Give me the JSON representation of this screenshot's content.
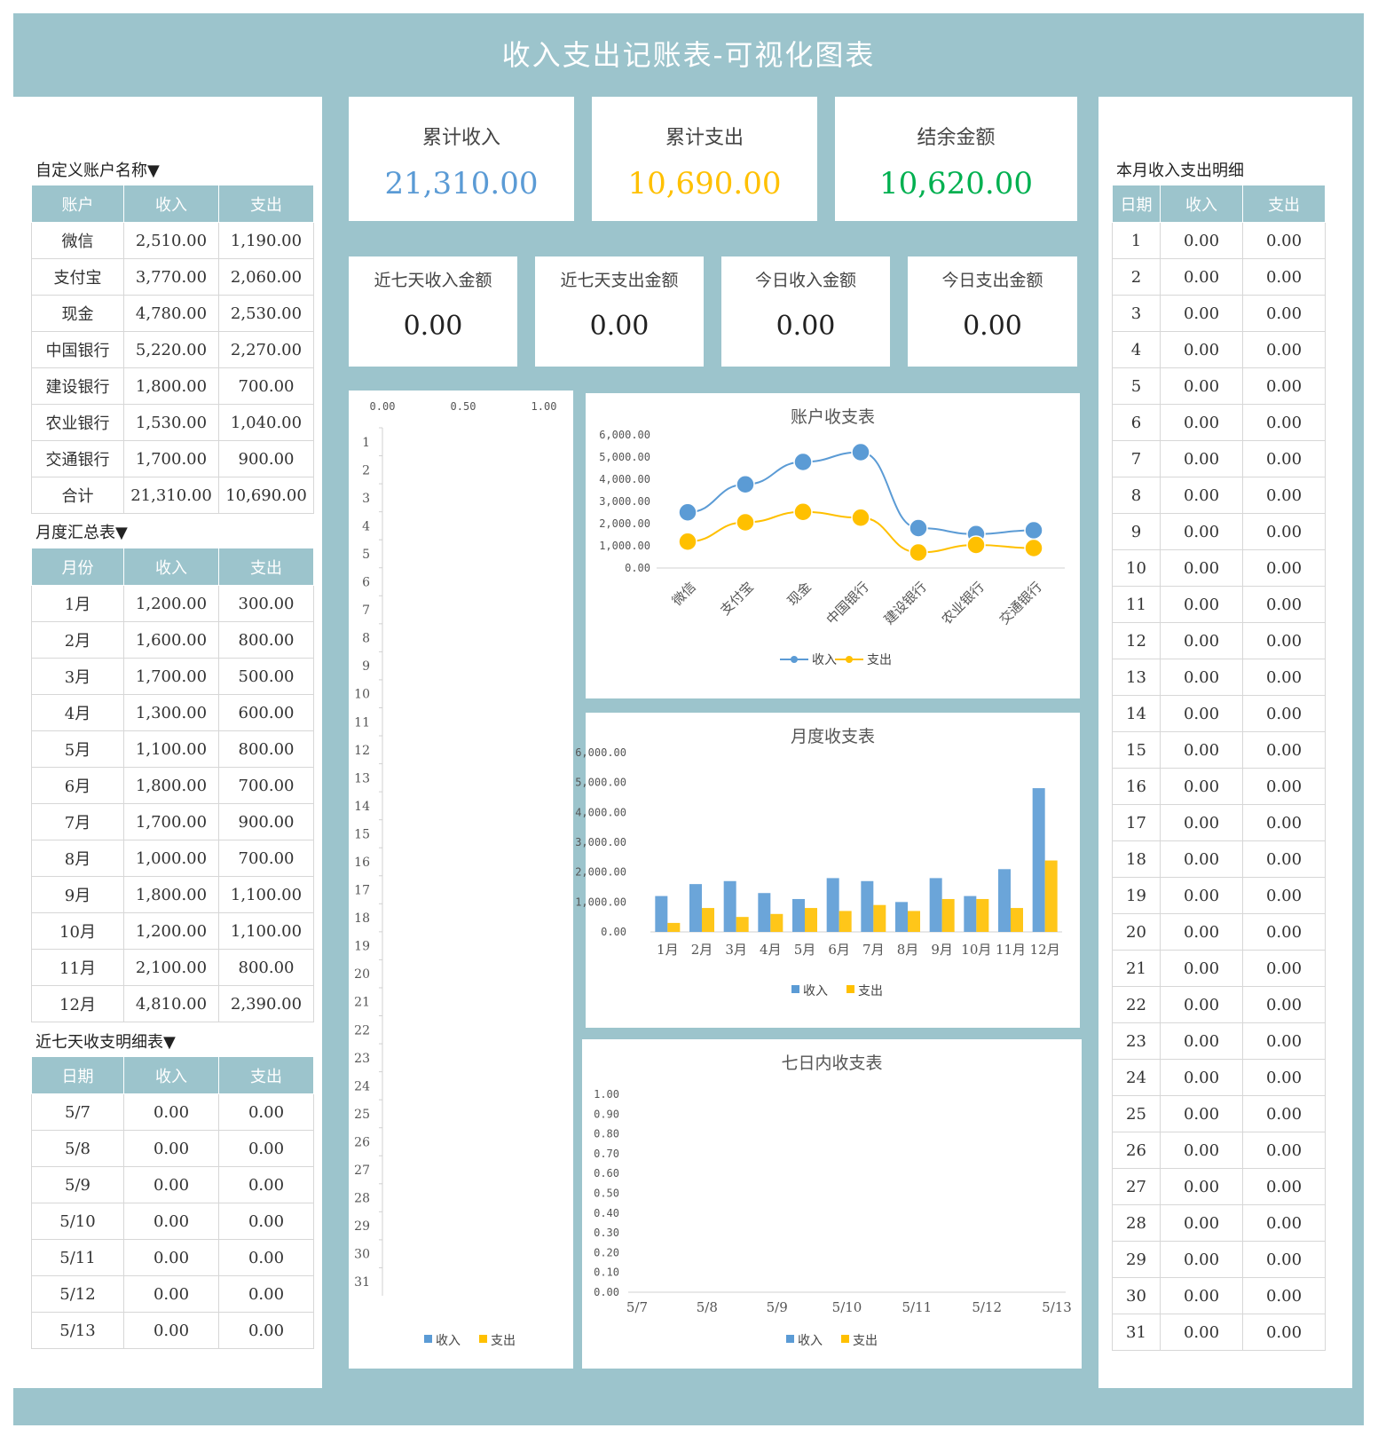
{
  "title": "收入支出记账表-可视化图表",
  "colors": {
    "teal": "#9cc4cc",
    "income": "#5b9bd5",
    "expense": "#ffc000",
    "balance": "#00b050"
  },
  "kpis": [
    {
      "label": "累计收入",
      "value": "21,310.00",
      "color": "#5b9bd5"
    },
    {
      "label": "累计支出",
      "value": "10,690.00",
      "color": "#ffc000"
    },
    {
      "label": "结余金额",
      "value": "10,620.00",
      "color": "#00b050"
    }
  ],
  "kpis_small": [
    {
      "label": "近七天收入金额",
      "value": "0.00"
    },
    {
      "label": "近七天支出金额",
      "value": "0.00"
    },
    {
      "label": "今日收入金额",
      "value": "0.00"
    },
    {
      "label": "今日支出金额",
      "value": "0.00"
    }
  ],
  "accounts": {
    "title": "自定义账户名称▼",
    "headers": [
      "账户",
      "收入",
      "支出"
    ],
    "rows": [
      [
        "微信",
        "2,510.00",
        "1,190.00"
      ],
      [
        "支付宝",
        "3,770.00",
        "2,060.00"
      ],
      [
        "现金",
        "4,780.00",
        "2,530.00"
      ],
      [
        "中国银行",
        "5,220.00",
        "2,270.00"
      ],
      [
        "建设银行",
        "1,800.00",
        "700.00"
      ],
      [
        "农业银行",
        "1,530.00",
        "1,040.00"
      ],
      [
        "交通银行",
        "1,700.00",
        "900.00"
      ],
      [
        "合计",
        "21,310.00",
        "10,690.00"
      ]
    ]
  },
  "monthly": {
    "title": "月度汇总表▼",
    "headers": [
      "月份",
      "收入",
      "支出"
    ],
    "rows": [
      [
        "1月",
        "1,200.00",
        "300.00"
      ],
      [
        "2月",
        "1,600.00",
        "800.00"
      ],
      [
        "3月",
        "1,700.00",
        "500.00"
      ],
      [
        "4月",
        "1,300.00",
        "600.00"
      ],
      [
        "5月",
        "1,100.00",
        "800.00"
      ],
      [
        "6月",
        "1,800.00",
        "700.00"
      ],
      [
        "7月",
        "1,700.00",
        "900.00"
      ],
      [
        "8月",
        "1,000.00",
        "700.00"
      ],
      [
        "9月",
        "1,800.00",
        "1,100.00"
      ],
      [
        "10月",
        "1,200.00",
        "1,100.00"
      ],
      [
        "11月",
        "2,100.00",
        "800.00"
      ],
      [
        "12月",
        "4,810.00",
        "2,390.00"
      ]
    ]
  },
  "week": {
    "title": "近七天收支明细表▼",
    "headers": [
      "日期",
      "收入",
      "支出"
    ],
    "rows": [
      [
        "5/7",
        "0.00",
        "0.00"
      ],
      [
        "5/8",
        "0.00",
        "0.00"
      ],
      [
        "5/9",
        "0.00",
        "0.00"
      ],
      [
        "5/10",
        "0.00",
        "0.00"
      ],
      [
        "5/11",
        "0.00",
        "0.00"
      ],
      [
        "5/12",
        "0.00",
        "0.00"
      ],
      [
        "5/13",
        "0.00",
        "0.00"
      ]
    ]
  },
  "daily": {
    "title": "本月收入支出明细",
    "headers": [
      "日期",
      "收入",
      "支出"
    ],
    "days": [
      "1",
      "2",
      "3",
      "4",
      "5",
      "6",
      "7",
      "8",
      "9",
      "10",
      "11",
      "12",
      "13",
      "14",
      "15",
      "16",
      "17",
      "18",
      "19",
      "20",
      "21",
      "22",
      "23",
      "24",
      "25",
      "26",
      "27",
      "28",
      "29",
      "30",
      "31"
    ],
    "value": "0.00"
  },
  "chart_data": [
    {
      "type": "bar",
      "orientation": "horizontal",
      "title": "",
      "x_ticks": [
        "0.00",
        "0.50",
        "1.00"
      ],
      "xlim": [
        0,
        1
      ],
      "categories": [
        "1",
        "2",
        "3",
        "4",
        "5",
        "6",
        "7",
        "8",
        "9",
        "10",
        "11",
        "12",
        "13",
        "14",
        "15",
        "16",
        "17",
        "18",
        "19",
        "20",
        "21",
        "22",
        "23",
        "24",
        "25",
        "26",
        "27",
        "28",
        "29",
        "30",
        "31"
      ],
      "series": [
        {
          "name": "收入",
          "values": [
            0,
            0,
            0,
            0,
            0,
            0,
            0,
            0,
            0,
            0,
            0,
            0,
            0,
            0,
            0,
            0,
            0,
            0,
            0,
            0,
            0,
            0,
            0,
            0,
            0,
            0,
            0,
            0,
            0,
            0,
            0
          ]
        },
        {
          "name": "支出",
          "values": [
            0,
            0,
            0,
            0,
            0,
            0,
            0,
            0,
            0,
            0,
            0,
            0,
            0,
            0,
            0,
            0,
            0,
            0,
            0,
            0,
            0,
            0,
            0,
            0,
            0,
            0,
            0,
            0,
            0,
            0,
            0
          ]
        }
      ],
      "legend": "bottom"
    },
    {
      "type": "line",
      "title": "账户收支表",
      "categories": [
        "微信",
        "支付宝",
        "现金",
        "中国银行",
        "建设银行",
        "农业银行",
        "交通银行"
      ],
      "series": [
        {
          "name": "收入",
          "values": [
            2510,
            3770,
            4780,
            5220,
            1800,
            1530,
            1700
          ]
        },
        {
          "name": "支出",
          "values": [
            1190,
            2060,
            2530,
            2270,
            700,
            1040,
            900
          ]
        }
      ],
      "y_ticks": [
        "0.00",
        "1,000.00",
        "2,000.00",
        "3,000.00",
        "4,000.00",
        "5,000.00",
        "6,000.00"
      ],
      "ylim": [
        0,
        6000
      ],
      "legend": "bottom"
    },
    {
      "type": "bar",
      "title": "月度收支表",
      "categories": [
        "1月",
        "2月",
        "3月",
        "4月",
        "5月",
        "6月",
        "7月",
        "8月",
        "9月",
        "10月",
        "11月",
        "12月"
      ],
      "series": [
        {
          "name": "收入",
          "values": [
            1200,
            1600,
            1700,
            1300,
            1100,
            1800,
            1700,
            1000,
            1800,
            1200,
            2100,
            4810
          ]
        },
        {
          "name": "支出",
          "values": [
            300,
            800,
            500,
            600,
            800,
            700,
            900,
            700,
            1100,
            1100,
            800,
            2390
          ]
        }
      ],
      "y_ticks": [
        "0.00",
        "1,000.00",
        "2,000.00",
        "3,000.00",
        "4,000.00",
        "5,000.00",
        "6,000.00"
      ],
      "ylim": [
        0,
        6000
      ],
      "legend": "bottom"
    },
    {
      "type": "bar",
      "title": "七日内收支表",
      "categories": [
        "5/7",
        "5/8",
        "5/9",
        "5/10",
        "5/11",
        "5/12",
        "5/13"
      ],
      "series": [
        {
          "name": "收入",
          "values": [
            0,
            0,
            0,
            0,
            0,
            0,
            0
          ]
        },
        {
          "name": "支出",
          "values": [
            0,
            0,
            0,
            0,
            0,
            0,
            0
          ]
        }
      ],
      "y_ticks": [
        "0.00",
        "0.10",
        "0.20",
        "0.30",
        "0.40",
        "0.50",
        "0.60",
        "0.70",
        "0.80",
        "0.90",
        "1.00"
      ],
      "ylim": [
        0,
        1
      ],
      "legend": "bottom"
    }
  ]
}
